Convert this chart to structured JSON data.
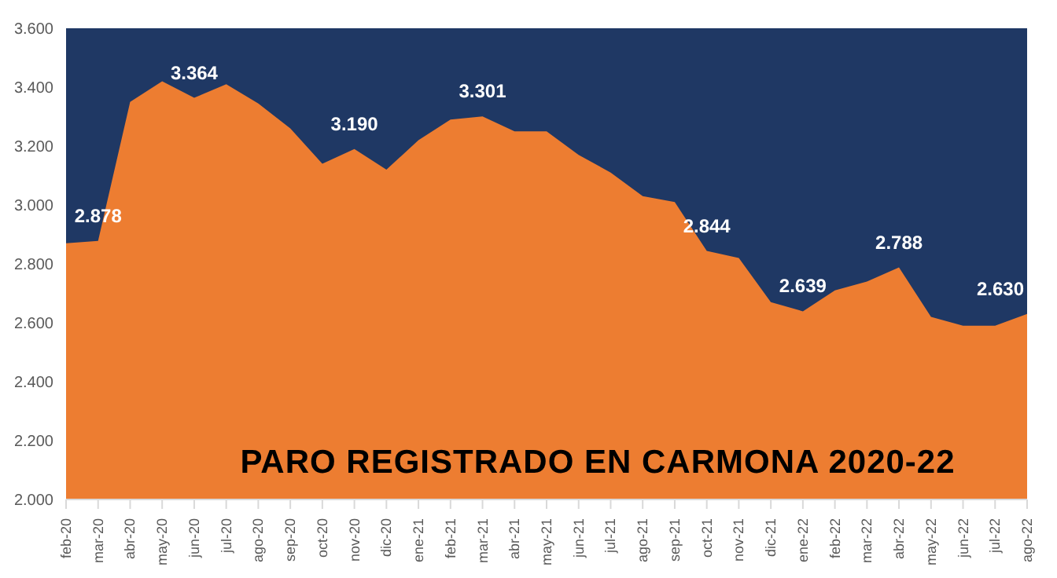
{
  "chart_data": {
    "type": "area",
    "title": "PARO REGISTRADO EN CARMONA 2020-22",
    "categories": [
      "feb-20",
      "mar-20",
      "abr-20",
      "may-20",
      "jun-20",
      "jul-20",
      "ago-20",
      "sep-20",
      "oct-20",
      "nov-20",
      "dic-20",
      "ene-21",
      "feb-21",
      "mar-21",
      "abr-21",
      "may-21",
      "jun-21",
      "jul-21",
      "ago-21",
      "sep-21",
      "oct-21",
      "nov-21",
      "dic-21",
      "ene-22",
      "feb-22",
      "mar-22",
      "abr-22",
      "may-22",
      "jun-22",
      "jul-22",
      "ago-22"
    ],
    "series": [
      {
        "color": "#ed7d31",
        "values": [
          2870,
          2878,
          3350,
          3420,
          3364,
          3410,
          3345,
          3260,
          3140,
          3190,
          3120,
          3220,
          3290,
          3301,
          3250,
          3250,
          3170,
          3110,
          3030,
          3010,
          2844,
          2820,
          2670,
          2639,
          2710,
          2740,
          2788,
          2620,
          2590,
          2590,
          2630
        ],
        "value_labels": [
          null,
          "2.878",
          null,
          null,
          "3.364",
          null,
          null,
          null,
          null,
          "3.190",
          null,
          null,
          null,
          "3.301",
          null,
          null,
          null,
          null,
          null,
          null,
          "2.844",
          null,
          null,
          "2.639",
          null,
          null,
          "2.788",
          null,
          null,
          null,
          "2.630"
        ]
      }
    ],
    "ylim": [
      2000,
      3600
    ],
    "yticks": [
      {
        "value": 2000,
        "label": "2.000"
      },
      {
        "value": 2200,
        "label": "2.200"
      },
      {
        "value": 2400,
        "label": "2.400"
      },
      {
        "value": 2600,
        "label": "2.600"
      },
      {
        "value": 2800,
        "label": "2.800"
      },
      {
        "value": 3000,
        "label": "3.000"
      },
      {
        "value": 3200,
        "label": "3.200"
      },
      {
        "value": 3400,
        "label": "3.400"
      },
      {
        "value": 3600,
        "label": "3.600"
      }
    ],
    "grid": false
  }
}
